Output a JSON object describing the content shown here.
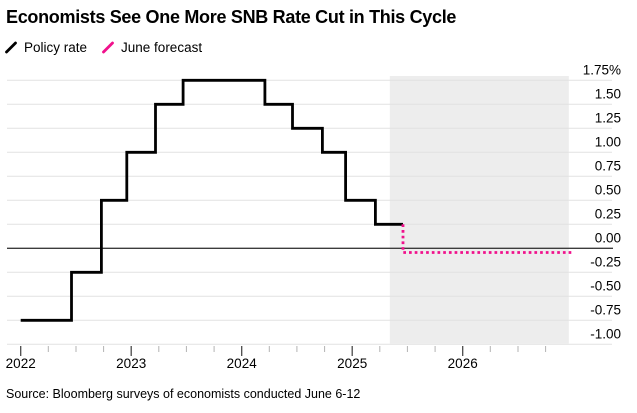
{
  "chart_data": {
    "type": "line",
    "subtype": "step",
    "title": "Economists See One More SNB Rate Cut in This Cycle",
    "source": "Source: Bloomberg surveys of economists conducted June 6-12",
    "grid": true,
    "legend_position": "top-left",
    "y_axis": {
      "unit": "%",
      "min": -1.0,
      "max": 1.75,
      "tick_step": 0.25,
      "tick_labels": [
        "1.75%",
        "1.50",
        "1.25",
        "1.00",
        "0.75",
        "0.50",
        "0.25",
        "0.00",
        "-0.25",
        "-0.50",
        "-0.75",
        "-1.00"
      ],
      "side": "right"
    },
    "x_axis": {
      "first_tick": 2022,
      "last_tick": 2026.75,
      "tick_interval_years": 0.25,
      "major_every": 4,
      "year_labels": [
        "2022",
        "2023",
        "2024",
        "2025",
        "2026"
      ]
    },
    "legend": [
      {
        "label": "Policy rate",
        "color": "#000000",
        "style": "solid"
      },
      {
        "label": "June forecast",
        "color": "#f0118c",
        "style": "dotted"
      }
    ],
    "series": [
      {
        "name": "Policy rate",
        "color": "#000000",
        "style": "solid",
        "points": [
          [
            2022.0,
            -0.75
          ],
          [
            2022.46,
            -0.25
          ],
          [
            2022.73,
            0.5
          ],
          [
            2022.96,
            1.0
          ],
          [
            2023.22,
            1.5
          ],
          [
            2023.47,
            1.75
          ],
          [
            2024.21,
            1.5
          ],
          [
            2024.46,
            1.25
          ],
          [
            2024.73,
            1.0
          ],
          [
            2024.94,
            0.5
          ],
          [
            2025.21,
            0.25
          ],
          [
            2025.46,
            0.25
          ]
        ]
      },
      {
        "name": "June forecast",
        "color": "#f0118c",
        "style": "dotted",
        "points": [
          [
            2025.46,
            0.25
          ],
          [
            2025.46,
            0.0
          ],
          [
            2026.99,
            0.0
          ]
        ]
      }
    ],
    "forecast_band_x": [
      2025.34,
      2026.96
    ],
    "colors": {
      "band": "#ededed",
      "grid": "#e2e2e2",
      "zero_line": "#3c3c3c",
      "tick_minor": "#b3b3b3",
      "tick_major": "#4a4a4a",
      "text": "#000000"
    }
  }
}
